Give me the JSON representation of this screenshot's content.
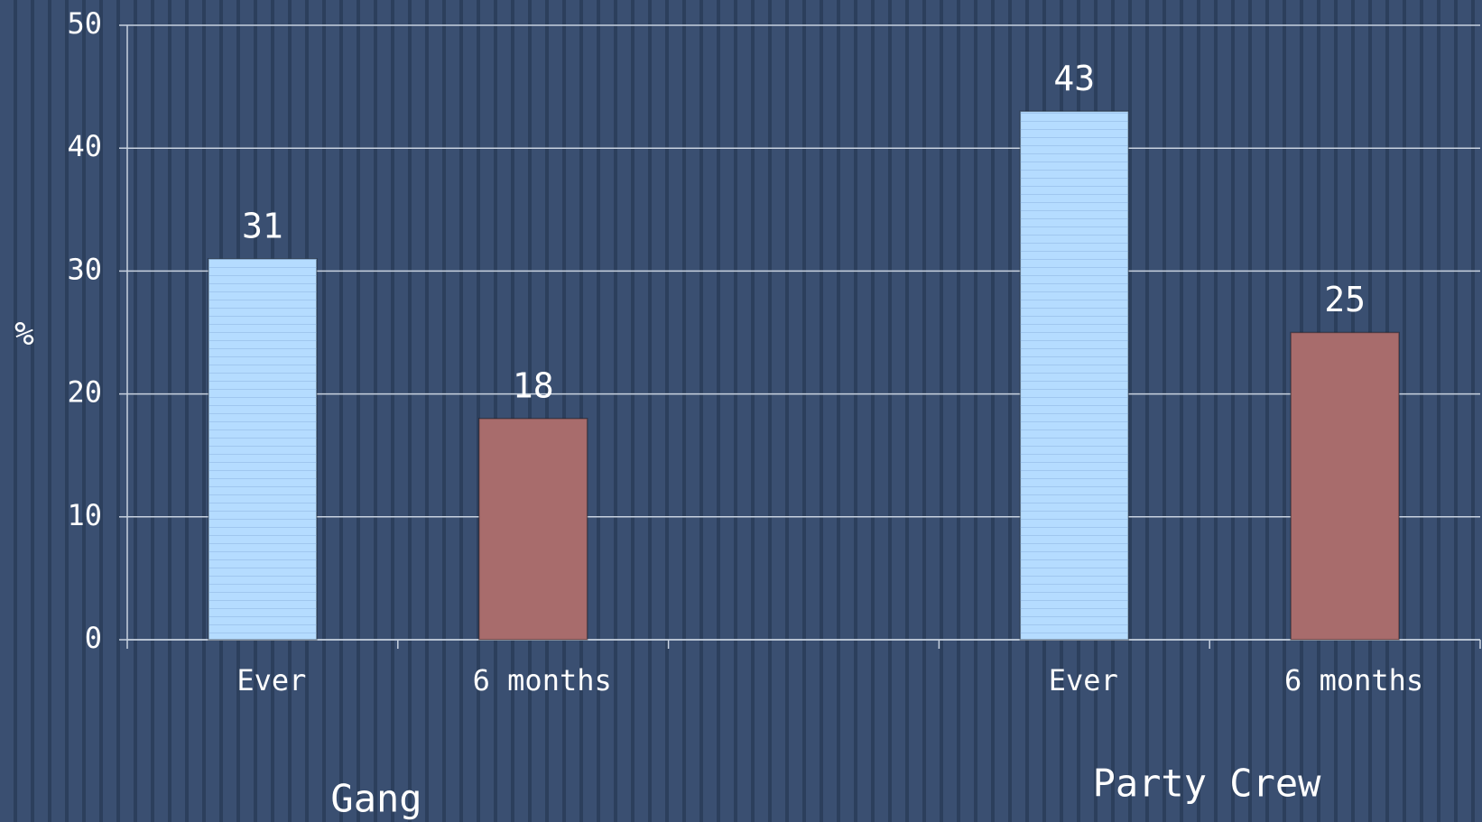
{
  "chart_data": {
    "type": "bar",
    "y_label": "%",
    "categories": [
      "Ever",
      "6 months",
      null,
      "Ever",
      "6 months"
    ],
    "values": [
      31,
      18,
      null,
      43,
      25
    ],
    "colors": [
      "#b5dcff",
      "#a86c6c",
      null,
      "#b5dcff",
      "#a86c6c"
    ],
    "groups": [
      {
        "label": "Gang"
      },
      {
        "label": "Party Crew"
      }
    ],
    "ylim": [
      0,
      50
    ],
    "yticks": [
      0,
      10,
      20,
      30,
      40,
      50
    ],
    "grid": true
  }
}
